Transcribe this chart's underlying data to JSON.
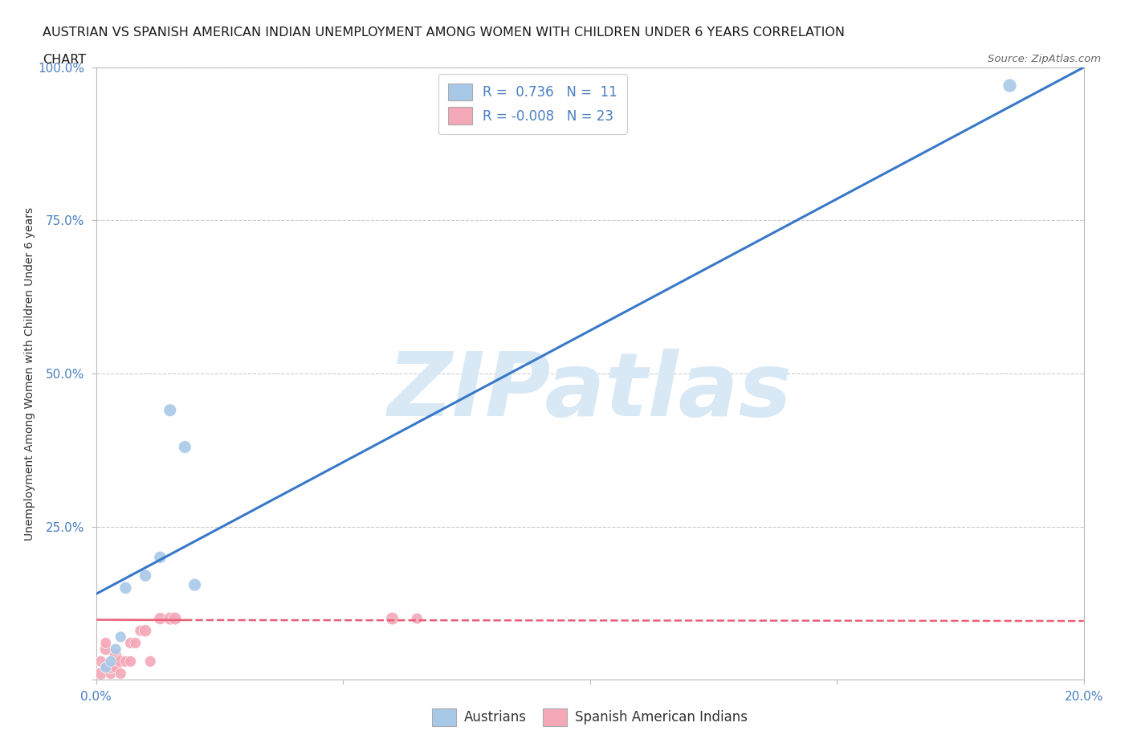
{
  "title_line1": "AUSTRIAN VS SPANISH AMERICAN INDIAN UNEMPLOYMENT AMONG WOMEN WITH CHILDREN UNDER 6 YEARS CORRELATION",
  "title_line2": "CHART",
  "source": "Source: ZipAtlas.com",
  "ylabel": "Unemployment Among Women with Children Under 6 years",
  "xlim": [
    0,
    0.2
  ],
  "ylim": [
    0,
    1.0
  ],
  "xticks": [
    0.0,
    0.05,
    0.1,
    0.15,
    0.2
  ],
  "xticklabels": [
    "0.0%",
    "",
    "",
    "",
    "20.0%"
  ],
  "yticks": [
    0.0,
    0.25,
    0.5,
    0.75,
    1.0
  ],
  "yticklabels": [
    "",
    "25.0%",
    "50.0%",
    "75.0%",
    "100.0%"
  ],
  "background_color": "#ffffff",
  "watermark_text": "ZIPatlas",
  "watermark_color": "#d8e8f5",
  "austrians_color": "#a8c8e8",
  "spanish_color": "#f4a8b8",
  "austrians_label": "Austrians",
  "spanish_label": "Spanish American Indians",
  "trend_blue_color": "#3878c8",
  "trend_pink_color": "#e8607a",
  "austrians_x": [
    0.002,
    0.003,
    0.004,
    0.005,
    0.006,
    0.01,
    0.013,
    0.015,
    0.018,
    0.02,
    0.185
  ],
  "austrians_y": [
    0.02,
    0.03,
    0.05,
    0.07,
    0.15,
    0.17,
    0.2,
    0.44,
    0.38,
    0.155,
    0.97
  ],
  "austrians_sizes": [
    100,
    100,
    100,
    100,
    120,
    120,
    120,
    130,
    130,
    130,
    150
  ],
  "spanish_x": [
    0.001,
    0.001,
    0.002,
    0.002,
    0.002,
    0.003,
    0.003,
    0.004,
    0.004,
    0.005,
    0.005,
    0.006,
    0.007,
    0.007,
    0.008,
    0.009,
    0.01,
    0.011,
    0.013,
    0.015,
    0.016,
    0.06,
    0.065
  ],
  "spanish_y": [
    0.01,
    0.03,
    0.02,
    0.05,
    0.06,
    0.01,
    0.02,
    0.02,
    0.04,
    0.01,
    0.03,
    0.03,
    0.03,
    0.06,
    0.06,
    0.08,
    0.08,
    0.03,
    0.1,
    0.1,
    0.1,
    0.1,
    0.1
  ],
  "spanish_sizes": [
    120,
    100,
    100,
    120,
    100,
    100,
    120,
    100,
    120,
    100,
    120,
    100,
    100,
    100,
    100,
    100,
    120,
    100,
    120,
    130,
    130,
    130,
    100
  ],
  "blue_trend_x0": 0.0,
  "blue_trend_y0": 0.14,
  "blue_trend_x1": 0.2,
  "blue_trend_y1": 1.0,
  "pink_trend_x0": 0.0,
  "pink_trend_y0": 0.098,
  "pink_trend_x1": 0.2,
  "pink_trend_y1": 0.096
}
